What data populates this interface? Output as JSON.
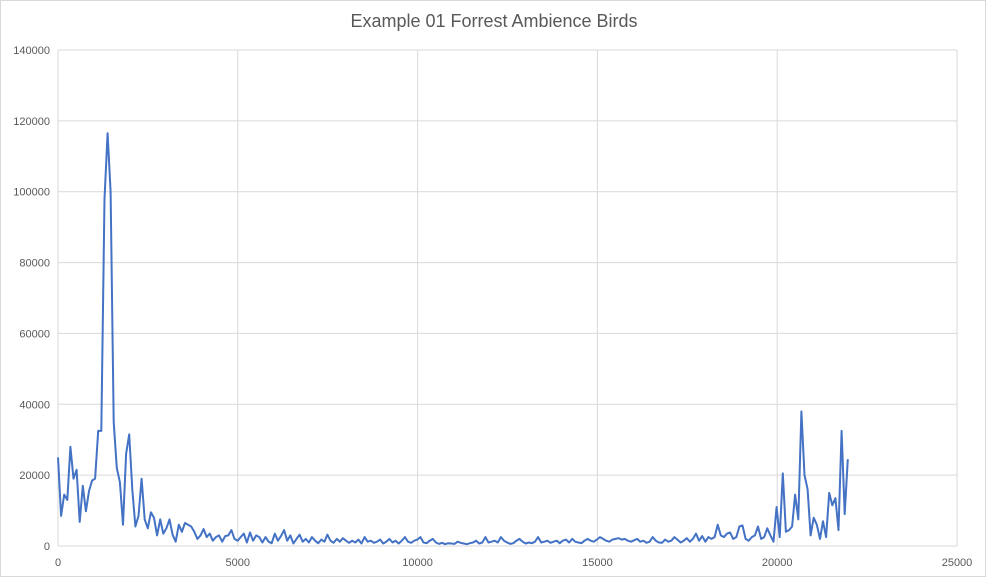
{
  "chart_data": {
    "type": "line",
    "title": "Example 01 Forrest Ambience Birds",
    "xlabel": "",
    "ylabel": "",
    "xlim": [
      0,
      25000
    ],
    "ylim": [
      0,
      140000
    ],
    "x_ticks": [
      0,
      5000,
      10000,
      15000,
      20000,
      25000
    ],
    "y_ticks": [
      0,
      20000,
      40000,
      60000,
      80000,
      100000,
      120000,
      140000
    ],
    "grid": true,
    "legend": "none",
    "series_color": "#4472c4",
    "series": [
      {
        "x": [
          0,
          86,
          172,
          258,
          344,
          430,
          516,
          603,
          689,
          775,
          861,
          947,
          1033,
          1119,
          1205,
          1292,
          1378,
          1464,
          1550,
          1636,
          1722,
          1808,
          1895,
          1981,
          2067,
          2153,
          2239,
          2325,
          2411,
          2497,
          2584,
          2670,
          2756,
          2842,
          2928,
          3014,
          3100,
          3186,
          3273,
          3359,
          3445,
          3531,
          3617,
          3703,
          3789,
          3876,
          3962,
          4048,
          4134,
          4220,
          4306,
          4392,
          4478,
          4565,
          4651,
          4737,
          4823,
          4909,
          4995,
          5081,
          5168,
          5254,
          5340,
          5426,
          5512,
          5598,
          5684,
          5770,
          5857,
          5943,
          6029,
          6115,
          6201,
          6287,
          6373,
          6460,
          6546,
          6632,
          6718,
          6804,
          6890,
          6976,
          7062,
          7149,
          7235,
          7321,
          7407,
          7493,
          7579,
          7665,
          7752,
          7838,
          7924,
          8010,
          8096,
          8182,
          8268,
          8355,
          8441,
          8527,
          8613,
          8699,
          8785,
          8871,
          8957,
          9044,
          9130,
          9216,
          9302,
          9388,
          9474,
          9560,
          9647,
          9733,
          9819,
          9905,
          9991,
          10077,
          10163,
          10249,
          10336,
          10422,
          10508,
          10594,
          10680,
          10766,
          10852,
          10939,
          11025,
          11111,
          11197,
          11283,
          11369,
          11455,
          11541,
          11628,
          11714,
          11800,
          11886,
          11972,
          12058,
          12144,
          12231,
          12317,
          12403,
          12489,
          12575,
          12661,
          12747,
          12834,
          12920,
          13006,
          13092,
          13178,
          13264,
          13350,
          13436,
          13523,
          13609,
          13695,
          13781,
          13867,
          13953,
          14039,
          14126,
          14212,
          14298,
          14384,
          14470,
          14556,
          14642,
          14728,
          14815,
          14901,
          14987,
          15073,
          15159,
          15245,
          15331,
          15418,
          15504,
          15590,
          15676,
          15762,
          15848,
          15934,
          16020,
          16107,
          16193,
          16279,
          16365,
          16451,
          16537,
          16623,
          16710,
          16796,
          16882,
          16968,
          17054,
          17140,
          17226,
          17313,
          17399,
          17485,
          17571,
          17657,
          17743,
          17829,
          17915,
          18002,
          18088,
          18174,
          18260,
          18346,
          18432,
          18518,
          18605,
          18691,
          18777,
          18863,
          18949,
          19035,
          19121,
          19207,
          19294,
          19380,
          19466,
          19552,
          19638,
          19724,
          19810,
          19897,
          19983,
          20069,
          20155,
          20241,
          20327,
          20413,
          20499,
          20586,
          20672,
          20758,
          20844,
          20930,
          21016,
          21102,
          21189,
          21275,
          21361,
          21447,
          21533,
          21619,
          21705,
          21791,
          21878,
          21964
        ],
        "values": [
          25000,
          8500,
          14500,
          13000,
          28000,
          19000,
          21500,
          6800,
          17000,
          9800,
          15500,
          18500,
          19000,
          32500,
          32500,
          98000,
          116500,
          100000,
          35000,
          22000,
          18000,
          6000,
          26000,
          31500,
          16000,
          5500,
          8500,
          19000,
          7500,
          5000,
          9500,
          8000,
          3000,
          7500,
          3500,
          5000,
          7500,
          3200,
          1200,
          6000,
          4000,
          6500,
          6000,
          5500,
          4000,
          2000,
          3000,
          4800,
          2500,
          3500,
          1500,
          2500,
          3000,
          1200,
          2800,
          3000,
          4500,
          2000,
          1500,
          2500,
          3500,
          1000,
          3800,
          1500,
          3000,
          2500,
          1000,
          2500,
          1200,
          800,
          3500,
          1500,
          2800,
          4500,
          1500,
          3000,
          700,
          2000,
          3200,
          1200,
          2000,
          1000,
          2500,
          1500,
          800,
          1800,
          1200,
          3200,
          1500,
          900,
          2000,
          1200,
          2200,
          1500,
          900,
          1500,
          1000,
          1800,
          700,
          2500,
          1200,
          1500,
          900,
          1200,
          1800,
          700,
          1200,
          2000,
          1000,
          1500,
          700,
          1500,
          2500,
          1200,
          900,
          1500,
          1800,
          2500,
          1000,
          800,
          1500,
          2000,
          1000,
          600,
          900,
          500,
          800,
          700,
          600,
          1200,
          900,
          700,
          500,
          800,
          1000,
          1500,
          700,
          1000,
          2500,
          1000,
          1200,
          1500,
          1000,
          2500,
          1500,
          1000,
          600,
          800,
          1500,
          2000,
          1200,
          700,
          1000,
          800,
          1200,
          2500,
          1000,
          1200,
          1500,
          900,
          1200,
          1500,
          800,
          1500,
          1800,
          1000,
          2000,
          1200,
          1000,
          800,
          1500,
          2000,
          1500,
          1200,
          1800,
          2500,
          2000,
          1500,
          1200,
          1800,
          2000,
          2200,
          1800,
          2000,
          1500,
          1200,
          1600,
          2000,
          1200,
          1500,
          900,
          1200,
          2500,
          1500,
          1000,
          900,
          1800,
          1200,
          1500,
          2500,
          1800,
          1000,
          1500,
          2200,
          1200,
          2000,
          3500,
          1500,
          2800,
          1200,
          2500,
          2000,
          2500,
          6000,
          3000,
          2500,
          3500,
          3800,
          2000,
          2500,
          5500,
          5800,
          2000,
          1500,
          2500,
          3000,
          5500,
          2000,
          2500,
          5000,
          3000,
          1200,
          11000,
          2500,
          20500,
          4000,
          4500,
          5500,
          14500,
          7500,
          38000,
          20000,
          16000,
          3000,
          8000,
          6000,
          2000,
          7000,
          2500,
          15000,
          11500,
          13500,
          4500,
          32500,
          9000,
          24500
        ]
      }
    ]
  }
}
